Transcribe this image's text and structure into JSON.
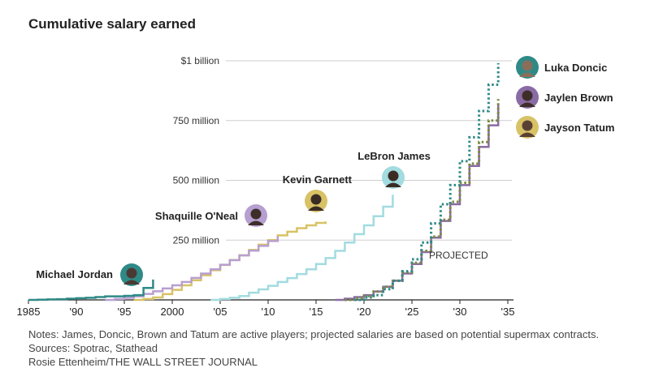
{
  "title": "Cumulative salary earned",
  "chart_data": {
    "type": "line",
    "title": "Cumulative salary earned",
    "x_range": [
      1985,
      2035
    ],
    "y_range": [
      0,
      1000000000
    ],
    "x_ticks": [
      {
        "value": 1985,
        "label": "1985"
      },
      {
        "value": 1990,
        "label": "'90"
      },
      {
        "value": 1995,
        "label": "'95"
      },
      {
        "value": 2000,
        "label": "2000"
      },
      {
        "value": 2005,
        "label": "'05"
      },
      {
        "value": 2010,
        "label": "'10"
      },
      {
        "value": 2015,
        "label": "'15"
      },
      {
        "value": 2020,
        "label": "'20"
      },
      {
        "value": 2025,
        "label": "'25"
      },
      {
        "value": 2030,
        "label": "'30"
      },
      {
        "value": 2035,
        "label": "'35"
      }
    ],
    "y_ticks": [
      {
        "value": 250000000,
        "label": "250 million"
      },
      {
        "value": 500000000,
        "label": "500 million"
      },
      {
        "value": 750000000,
        "label": "750 million"
      },
      {
        "value": 1000000000,
        "label": "$1 billion"
      }
    ],
    "grid": "horizontal",
    "annotation": "PROJECTED",
    "series": [
      {
        "name": "Michael Jordan",
        "color": "#2f8a87",
        "style": "solid",
        "x": [
          1985,
          1986,
          1987,
          1988,
          1989,
          1990,
          1991,
          1992,
          1993,
          1995,
          1996,
          1997,
          1998
        ],
        "y": [
          0,
          1,
          2,
          3,
          5,
          7,
          9,
          12,
          15,
          17,
          20,
          50,
          85
        ]
      },
      {
        "name": "Shaquille O'Neal",
        "color": "#b79fd0",
        "style": "solid",
        "x": [
          1993,
          1994,
          1995,
          1996,
          1997,
          1998,
          1999,
          2000,
          2001,
          2002,
          2003,
          2004,
          2005,
          2006,
          2007,
          2008,
          2009,
          2010,
          2011
        ],
        "y": [
          0,
          4,
          9,
          15,
          25,
          36,
          48,
          61,
          75,
          92,
          110,
          128,
          147,
          166,
          186,
          206,
          226,
          246,
          266
        ]
      },
      {
        "name": "Kevin Garnett",
        "color": "#d8c266",
        "style": "solid",
        "x": [
          1996,
          1997,
          1998,
          1999,
          2000,
          2001,
          2002,
          2003,
          2004,
          2005,
          2006,
          2007,
          2008,
          2009,
          2010,
          2011,
          2012,
          2013,
          2014,
          2015,
          2016
        ],
        "y": [
          0,
          4,
          10,
          24,
          42,
          61,
          82,
          103,
          124,
          146,
          167,
          187,
          209,
          231,
          250,
          270,
          285,
          300,
          312,
          322,
          328
        ]
      },
      {
        "name": "LeBron James",
        "color": "#a2dbe0",
        "style": "solid",
        "x": [
          2004,
          2005,
          2006,
          2007,
          2008,
          2009,
          2010,
          2011,
          2012,
          2013,
          2014,
          2015,
          2016,
          2017,
          2018,
          2019,
          2020,
          2021,
          2022,
          2023
        ],
        "y": [
          0,
          4,
          9,
          16,
          30,
          44,
          59,
          75,
          91,
          108,
          128,
          150,
          175,
          205,
          240,
          275,
          312,
          350,
          390,
          440
        ]
      },
      {
        "name": "Luka Doncic",
        "color": "#2f8a87",
        "style": "dotted",
        "x": [
          2019,
          2020,
          2021,
          2022,
          2023,
          2024,
          2025,
          2026,
          2027,
          2028,
          2029,
          2030,
          2031,
          2032,
          2033,
          2034
        ],
        "y": [
          0,
          10,
          20,
          45,
          80,
          120,
          170,
          240,
          320,
          400,
          480,
          580,
          680,
          790,
          900,
          990
        ]
      },
      {
        "name": "Jaylen Brown",
        "color": "#8a6ba4",
        "style": "solid",
        "x": [
          2017,
          2018,
          2019,
          2020,
          2021,
          2022,
          2023,
          2024,
          2025,
          2026,
          2027,
          2028,
          2029,
          2030,
          2031,
          2032,
          2033,
          2034
        ],
        "y": [
          0,
          5,
          12,
          20,
          35,
          55,
          80,
          110,
          150,
          200,
          260,
          330,
          400,
          480,
          560,
          640,
          730,
          820
        ]
      },
      {
        "name": "Jayson Tatum",
        "color": "#7a8a40",
        "style": "dotted",
        "x": [
          2018,
          2019,
          2020,
          2021,
          2022,
          2023,
          2024,
          2025,
          2026,
          2027,
          2028,
          2029,
          2030,
          2031,
          2032,
          2033,
          2034
        ],
        "y": [
          0,
          8,
          16,
          35,
          55,
          80,
          115,
          155,
          205,
          265,
          335,
          410,
          490,
          570,
          660,
          750,
          840
        ]
      }
    ],
    "y_units": "million dollars"
  },
  "notes": {
    "line1": "Notes: James, Doncic, Brown and Tatum are active players; projected salaries are based on potential supermax contracts.",
    "line2": "Sources: Spotrac, Stathead",
    "line3": "Rosie Ettenheim/THE WALL STREET JOURNAL"
  }
}
